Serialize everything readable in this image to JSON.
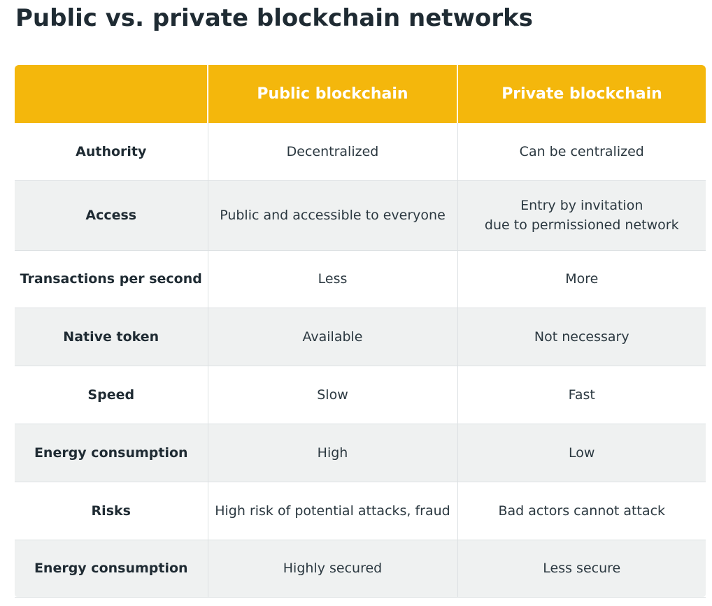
{
  "title": "Public vs. private blockchain networks",
  "columns": [
    "",
    "Public blockchain",
    "Private blockchain"
  ],
  "rows": [
    {
      "label": "Authority",
      "public": [
        "Decentralized"
      ],
      "private": [
        "Can be centralized"
      ]
    },
    {
      "label": "Access",
      "public": [
        "Public and accessible to everyone"
      ],
      "private": [
        "Entry by invitation",
        "due to permissioned network"
      ]
    },
    {
      "label": "Transactions per second",
      "public": [
        "Less"
      ],
      "private": [
        "More"
      ]
    },
    {
      "label": "Native token",
      "public": [
        "Available"
      ],
      "private": [
        "Not necessary"
      ]
    },
    {
      "label": "Speed",
      "public": [
        "Slow"
      ],
      "private": [
        "Fast"
      ]
    },
    {
      "label": "Energy consumption",
      "public": [
        "High"
      ],
      "private": [
        "Low"
      ]
    },
    {
      "label": "Risks",
      "public": [
        "High risk of potential attacks, fraud"
      ],
      "private": [
        "Bad actors cannot attack"
      ]
    },
    {
      "label": "Energy consumption",
      "public": [
        "Highly secured"
      ],
      "private": [
        "Less secure"
      ]
    }
  ],
  "colors": {
    "header": "#f4b70c",
    "stripe": "#eff1f1",
    "text": "#1f2b33"
  }
}
